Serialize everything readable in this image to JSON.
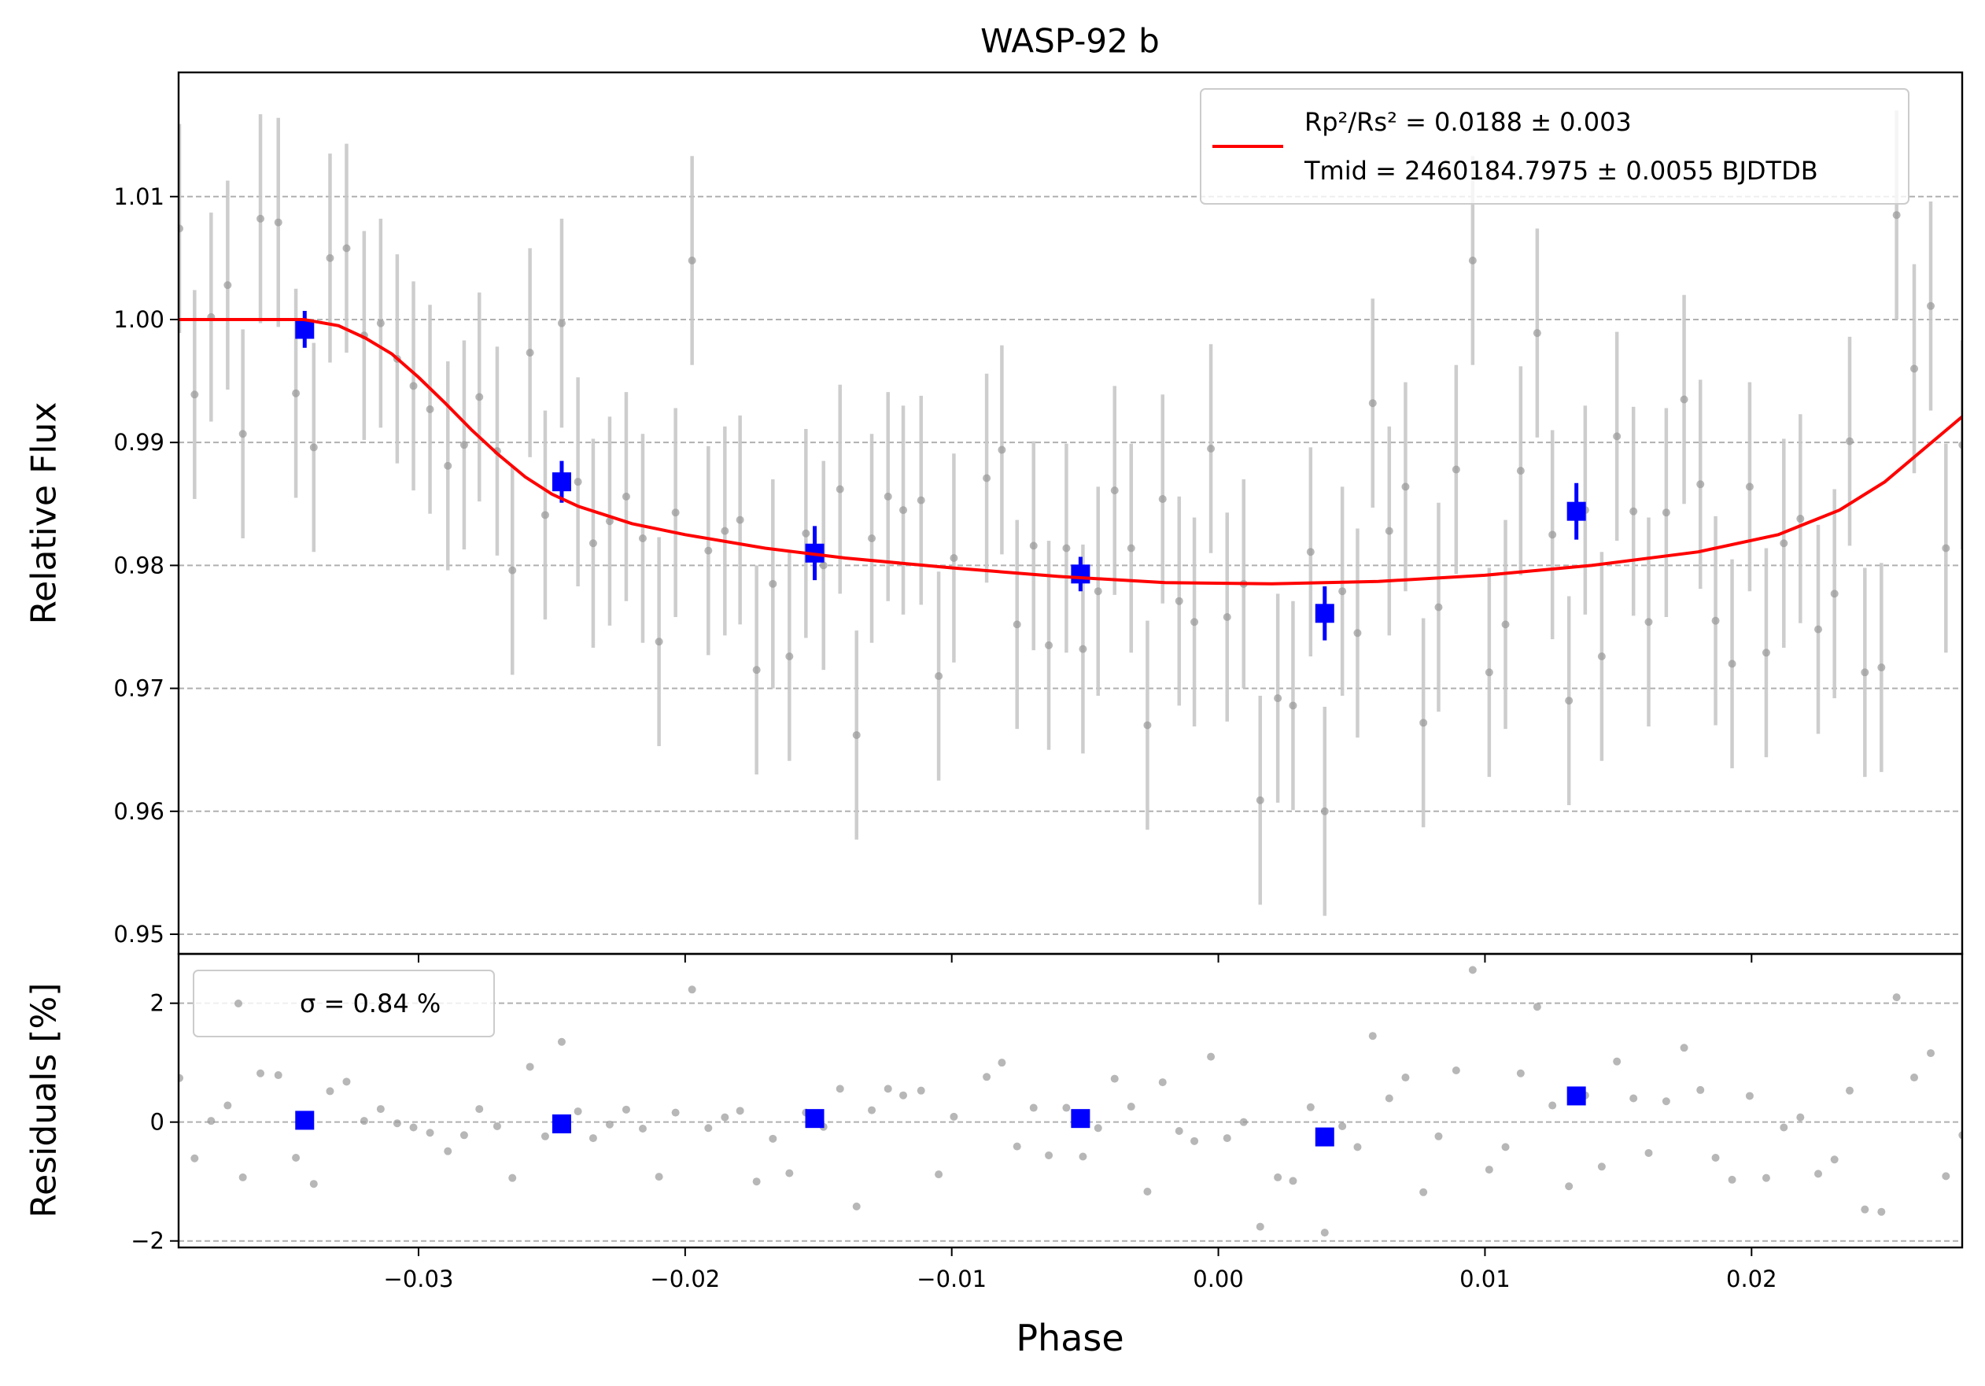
{
  "chart_data": [
    {
      "type": "scatter",
      "title": "WASP-92 b",
      "y_label": "Relative Flux",
      "xlim": [
        -0.039,
        0.0279
      ],
      "ylim": [
        0.9484,
        1.0201
      ],
      "yticks": [
        0.95,
        0.96,
        0.97,
        0.98,
        0.99,
        {
          "value": 1,
          "label": "1.00"
        },
        1.01
      ],
      "grid": "y",
      "legend": "upper right",
      "series": [
        {
          "marker": "circle",
          "color": "#999999",
          "error_color": "#c8c8c8",
          "x": [
            -0.03897,
            -0.0384,
            -0.03778,
            -0.03716,
            -0.03659,
            -0.03593,
            -0.03526,
            -0.0346,
            -0.03393,
            -0.03332,
            -0.0327,
            -0.03204,
            -0.03142,
            -0.0308,
            -0.03019,
            -0.02957,
            -0.0289,
            -0.02829,
            -0.02772,
            -0.02705,
            -0.02648,
            -0.02582,
            -0.02525,
            -0.02463,
            -0.02402,
            -0.02345,
            -0.02283,
            -0.02221,
            -0.02159,
            -0.02098,
            -0.02036,
            -0.01974,
            -0.01913,
            -0.01851,
            -0.01794,
            -0.01732,
            -0.01671,
            -0.01609,
            -0.01547,
            -0.01481,
            -0.01419,
            -0.01357,
            -0.013,
            -0.01239,
            -0.01182,
            -0.01115,
            -0.01049,
            -0.00992,
            -0.00869,
            -0.00812,
            -0.00755,
            -0.00693,
            -0.00636,
            -0.0057,
            -0.00508,
            -0.00451,
            -0.00389,
            -0.00327,
            -0.00266,
            -0.00209,
            -0.00147,
            -0.0009,
            -0.00028,
            0.00033,
            0.00095,
            0.00157,
            0.00223,
            0.0028,
            0.00346,
            0.00399,
            0.00465,
            0.00522,
            0.00579,
            0.00641,
            0.00702,
            0.00769,
            0.00826,
            0.00892,
            0.00954,
            0.01016,
            0.01077,
            0.01134,
            0.01196,
            0.01253,
            0.01315,
            0.01376,
            0.01438,
            0.01495,
            0.01557,
            0.01614,
            0.0168,
            0.01747,
            0.01808,
            0.01865,
            0.01927,
            0.01993,
            0.02055,
            0.02121,
            0.02183,
            0.0225,
            0.02311,
            0.02368,
            0.02425,
            0.02487,
            0.02544,
            0.0261,
            0.02672,
            0.02729,
            0.02791
          ],
          "values": [
            1.0074,
            0.9939,
            1.0002,
            1.0028,
            0.9907,
            1.0082,
            1.0079,
            0.994,
            0.9896,
            1.005,
            1.0058,
            0.9987,
            0.9997,
            0.9968,
            0.9946,
            0.9927,
            0.9881,
            0.9898,
            0.9937,
            0.9893,
            0.9796,
            0.9973,
            0.9841,
            0.9997,
            0.9868,
            0.9818,
            0.9836,
            0.9856,
            0.9822,
            0.9738,
            0.9843,
            1.0048,
            0.9812,
            0.9828,
            0.9837,
            0.9715,
            0.9785,
            0.9726,
            0.9826,
            0.98,
            0.9862,
            0.9662,
            0.9822,
            0.9856,
            0.9845,
            0.9853,
            0.971,
            0.9806,
            0.9871,
            0.9894,
            0.9752,
            0.9816,
            0.9735,
            0.9814,
            0.9732,
            0.9779,
            0.9861,
            0.9814,
            0.967,
            0.9854,
            0.9771,
            0.9754,
            0.9895,
            0.9758,
            0.9785,
            0.9609,
            0.9692,
            0.9686,
            0.9811,
            0.96,
            0.9779,
            0.9745,
            0.9932,
            0.9828,
            0.9864,
            0.9672,
            0.9766,
            0.9878,
            1.0048,
            0.9713,
            0.9752,
            0.9877,
            0.9989,
            0.9825,
            0.969,
            0.9845,
            0.9726,
            0.9905,
            0.9844,
            0.9754,
            0.9843,
            0.9935,
            0.9866,
            0.9755,
            0.972,
            0.9864,
            0.9729,
            0.9818,
            0.9838,
            0.9748,
            0.9777,
            0.9901,
            0.9713,
            0.9717,
            1.0085,
            0.996,
            1.0011,
            0.9814,
            0.9898
          ],
          "errors": [
            0.0085,
            0.0085,
            0.0085,
            0.0085,
            0.0085,
            0.0085,
            0.0085,
            0.0085,
            0.0085,
            0.0085,
            0.0085,
            0.0085,
            0.0085,
            0.0085,
            0.0085,
            0.0085,
            0.0085,
            0.0085,
            0.0085,
            0.0085,
            0.0085,
            0.0085,
            0.0085,
            0.0085,
            0.0085,
            0.0085,
            0.0085,
            0.0085,
            0.0085,
            0.0085,
            0.0085,
            0.0085,
            0.0085,
            0.0085,
            0.0085,
            0.0085,
            0.0085,
            0.0085,
            0.0085,
            0.0085,
            0.0085,
            0.0085,
            0.0085,
            0.0085,
            0.0085,
            0.0085,
            0.0085,
            0.0085,
            0.0085,
            0.0085,
            0.0085,
            0.0085,
            0.0085,
            0.0085,
            0.0085,
            0.0085,
            0.0085,
            0.0085,
            0.0085,
            0.0085,
            0.0085,
            0.0085,
            0.0085,
            0.0085,
            0.0085,
            0.0085,
            0.0085,
            0.0085,
            0.0085,
            0.0085,
            0.0085,
            0.0085,
            0.0085,
            0.0085,
            0.0085,
            0.0085,
            0.0085,
            0.0085,
            0.0085,
            0.0085,
            0.0085,
            0.0085,
            0.0085,
            0.0085,
            0.0085,
            0.0085,
            0.0085,
            0.0085,
            0.0085,
            0.0085,
            0.0085,
            0.0085,
            0.0085,
            0.0085,
            0.0085,
            0.0085,
            0.0085,
            0.0085,
            0.0085,
            0.0085,
            0.0085,
            0.0085,
            0.0085,
            0.0085,
            0.0085,
            0.0085,
            0.0085,
            0.0085,
            0.0085
          ]
        },
        {
          "marker": "square",
          "color": "#0000ff",
          "error_color": "#0000ff",
          "x": [
            -0.03427,
            -0.02463,
            -0.01514,
            -0.00517,
            0.00399,
            0.01343
          ],
          "values": [
            0.9992,
            0.9868,
            0.981,
            0.9793,
            0.9761,
            0.9844
          ],
          "errors": [
            0.0015,
            0.0017,
            0.0022,
            0.0014,
            0.0022,
            0.0023
          ]
        },
        {
          "marker": "line",
          "color": "#ff0000",
          "name": [
            "Rp²/Rs² = 0.0188 ± 0.003",
            "Tmid = 2460184.7975 ± 0.0055 BJDTDB"
          ],
          "x": [
            -0.039,
            -0.0343,
            -0.033,
            -0.032,
            -0.031,
            -0.03,
            -0.029,
            -0.028,
            -0.027,
            -0.026,
            -0.025,
            -0.024,
            -0.022,
            -0.02,
            -0.017,
            -0.014,
            -0.01,
            -0.006,
            -0.002,
            0.002,
            0.006,
            0.01,
            0.014,
            0.018,
            0.021,
            0.0233,
            0.025,
            0.0279
          ],
          "values": [
            1.0,
            1.0,
            0.9995,
            0.9985,
            0.9972,
            0.9953,
            0.9932,
            0.991,
            0.989,
            0.9872,
            0.9858,
            0.9848,
            0.9834,
            0.9825,
            0.9814,
            0.9806,
            0.9798,
            0.9791,
            0.9786,
            0.9785,
            0.9787,
            0.9792,
            0.98,
            0.9811,
            0.9825,
            0.9845,
            0.9868,
            0.9921
          ]
        }
      ]
    },
    {
      "type": "scatter",
      "x_label": "Phase",
      "y_label": "Residuals [%]",
      "xlim": [
        -0.039,
        0.0279
      ],
      "ylim": [
        -2.11,
        2.83
      ],
      "xticks": [
        {
          "value": -0.03,
          "label": "−0.03"
        },
        {
          "value": -0.02,
          "label": "−0.02"
        },
        {
          "value": -0.01,
          "label": "−0.01"
        },
        {
          "value": 0,
          "label": "0.00"
        },
        0.01,
        0.02
      ],
      "yticks": [
        {
          "value": -2,
          "label": "−2"
        },
        0,
        2
      ],
      "grid": "y",
      "legend": "upper left",
      "series": [
        {
          "marker": "circle",
          "color": "#999999",
          "name": "σ = 0.84 %",
          "x": [
            -0.03897,
            -0.0384,
            -0.03778,
            -0.03716,
            -0.03659,
            -0.03593,
            -0.03526,
            -0.0346,
            -0.03393,
            -0.03332,
            -0.0327,
            -0.03204,
            -0.03142,
            -0.0308,
            -0.03019,
            -0.02957,
            -0.0289,
            -0.02829,
            -0.02772,
            -0.02705,
            -0.02648,
            -0.02582,
            -0.02525,
            -0.02463,
            -0.02402,
            -0.02345,
            -0.02283,
            -0.02221,
            -0.02159,
            -0.02098,
            -0.02036,
            -0.01974,
            -0.01913,
            -0.01851,
            -0.01794,
            -0.01732,
            -0.01671,
            -0.01609,
            -0.01547,
            -0.01481,
            -0.01419,
            -0.01357,
            -0.013,
            -0.01239,
            -0.01182,
            -0.01115,
            -0.01049,
            -0.00992,
            -0.00869,
            -0.00812,
            -0.00755,
            -0.00693,
            -0.00636,
            -0.0057,
            -0.00508,
            -0.00451,
            -0.00389,
            -0.00327,
            -0.00266,
            -0.00209,
            -0.00147,
            -0.0009,
            -0.00028,
            0.00033,
            0.00095,
            0.00157,
            0.00223,
            0.0028,
            0.00346,
            0.00399,
            0.00465,
            0.00522,
            0.00579,
            0.00641,
            0.00702,
            0.00769,
            0.00826,
            0.00892,
            0.00954,
            0.01016,
            0.01077,
            0.01134,
            0.01196,
            0.01253,
            0.01315,
            0.01376,
            0.01438,
            0.01495,
            0.01557,
            0.01614,
            0.0168,
            0.01747,
            0.01808,
            0.01865,
            0.01927,
            0.01993,
            0.02055,
            0.02121,
            0.02183,
            0.0225,
            0.02311,
            0.02368,
            0.02425,
            0.02487,
            0.02544,
            0.0261,
            0.02672,
            0.02729,
            0.02791
          ],
          "values": [
            0.74,
            -0.61,
            0.02,
            0.28,
            -0.93,
            0.82,
            0.79,
            -0.6,
            -1.04,
            0.52,
            0.68,
            0.02,
            0.22,
            -0.02,
            -0.09,
            -0.18,
            -0.49,
            -0.22,
            0.22,
            -0.07,
            -0.94,
            0.93,
            -0.24,
            1.35,
            0.18,
            -0.27,
            -0.04,
            0.21,
            -0.11,
            -0.92,
            0.16,
            2.23,
            -0.1,
            0.08,
            0.19,
            -1.0,
            -0.28,
            -0.86,
            0.16,
            -0.08,
            0.56,
            -1.42,
            0.2,
            0.56,
            0.45,
            0.53,
            -0.88,
            0.09,
            0.76,
            1.0,
            -0.41,
            0.24,
            -0.56,
            0.24,
            -0.58,
            -0.1,
            0.73,
            0.26,
            -1.17,
            0.67,
            -0.15,
            -0.32,
            1.1,
            -0.27,
            0,
            -1.76,
            -0.93,
            -0.99,
            0.25,
            -1.86,
            -0.07,
            -0.42,
            1.45,
            0.4,
            0.75,
            -1.18,
            -0.24,
            0.87,
            2.56,
            -0.8,
            -0.42,
            0.82,
            1.94,
            0.28,
            -1.08,
            0.45,
            -0.75,
            1.02,
            0.4,
            -0.52,
            0.35,
            1.25,
            0.54,
            -0.6,
            -0.97,
            0.44,
            -0.94,
            -0.09,
            0.08,
            -0.87,
            -0.63,
            0.53,
            -1.47,
            -1.51,
            2.1,
            0.75,
            1.16,
            -0.91,
            -0.22
          ]
        },
        {
          "marker": "square",
          "color": "#0000ff",
          "x": [
            -0.03427,
            -0.02463,
            -0.01514,
            -0.00517,
            0.00399,
            0.01343
          ],
          "values": [
            0.03,
            -0.03,
            0.06,
            0.06,
            -0.25,
            0.44
          ]
        }
      ]
    }
  ]
}
